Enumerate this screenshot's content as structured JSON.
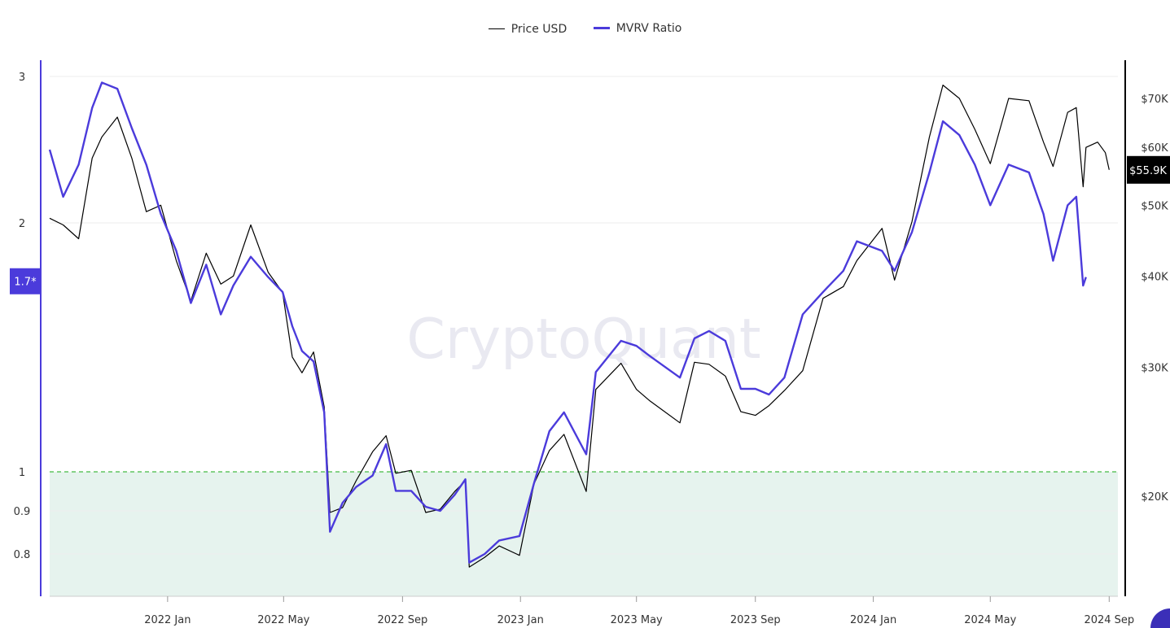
{
  "legend": {
    "price_label": "Price USD",
    "mvrv_label": "MVRV Ratio"
  },
  "watermark": "CryptoQuant",
  "colors": {
    "price": "#000000",
    "mvrv": "#4b3bdb",
    "threshold": "#44bb44",
    "zone": "#e6f3ee",
    "left_axis": "#4b3bdb"
  },
  "chart_data": {
    "type": "line",
    "x_ticks": [
      "2022 Jan",
      "2022 May",
      "2022 Sep",
      "2023 Jan",
      "2023 May",
      "2023 Sep",
      "2024 Jan",
      "2024 May",
      "2024 Sep"
    ],
    "left_axis": {
      "name": "MVRV Ratio",
      "ticks": [
        "3",
        "2",
        "1",
        "0.9",
        "0.8"
      ],
      "current_label": "1.7*",
      "current_value": 1.7
    },
    "right_axis": {
      "name": "Price USD",
      "scale": "log",
      "ticks": [
        "$70K",
        "$60K",
        "$50K",
        "$40K",
        "$30K",
        "$20K"
      ],
      "current_label": "$55.9K",
      "current_value": 55900
    },
    "threshold": {
      "value": 1,
      "style": "dashed",
      "zone": "below 1 shaded"
    },
    "series": [
      {
        "name": "MVRV Ratio",
        "axis": "left",
        "points": [
          [
            "2021-09-01",
            2.45
          ],
          [
            "2021-09-15",
            2.15
          ],
          [
            "2021-10-01",
            2.35
          ],
          [
            "2021-10-15",
            2.75
          ],
          [
            "2021-10-25",
            2.95
          ],
          [
            "2021-11-10",
            2.9
          ],
          [
            "2021-11-25",
            2.6
          ],
          [
            "2021-12-10",
            2.35
          ],
          [
            "2021-12-25",
            2.05
          ],
          [
            "2022-01-10",
            1.85
          ],
          [
            "2022-01-25",
            1.6
          ],
          [
            "2022-02-10",
            1.78
          ],
          [
            "2022-02-25",
            1.55
          ],
          [
            "2022-03-10",
            1.68
          ],
          [
            "2022-03-28",
            1.82
          ],
          [
            "2022-04-15",
            1.72
          ],
          [
            "2022-04-30",
            1.65
          ],
          [
            "2022-05-10",
            1.5
          ],
          [
            "2022-05-20",
            1.4
          ],
          [
            "2022-06-01",
            1.36
          ],
          [
            "2022-06-12",
            1.18
          ],
          [
            "2022-06-18",
            0.85
          ],
          [
            "2022-07-01",
            0.92
          ],
          [
            "2022-07-15",
            0.96
          ],
          [
            "2022-08-01",
            0.99
          ],
          [
            "2022-08-15",
            1.08
          ],
          [
            "2022-08-25",
            0.95
          ],
          [
            "2022-09-10",
            0.95
          ],
          [
            "2022-09-25",
            0.91
          ],
          [
            "2022-10-10",
            0.9
          ],
          [
            "2022-10-25",
            0.94
          ],
          [
            "2022-11-05",
            0.98
          ],
          [
            "2022-11-09",
            0.78
          ],
          [
            "2022-11-25",
            0.8
          ],
          [
            "2022-12-10",
            0.83
          ],
          [
            "2022-12-31",
            0.84
          ],
          [
            "2023-01-15",
            0.97
          ],
          [
            "2023-01-31",
            1.12
          ],
          [
            "2023-02-15",
            1.18
          ],
          [
            "2023-03-10",
            1.05
          ],
          [
            "2023-03-20",
            1.32
          ],
          [
            "2023-04-15",
            1.44
          ],
          [
            "2023-05-01",
            1.42
          ],
          [
            "2023-05-15",
            1.38
          ],
          [
            "2023-06-15",
            1.3
          ],
          [
            "2023-06-30",
            1.45
          ],
          [
            "2023-07-15",
            1.48
          ],
          [
            "2023-08-01",
            1.44
          ],
          [
            "2023-08-17",
            1.26
          ],
          [
            "2023-09-01",
            1.26
          ],
          [
            "2023-09-15",
            1.24
          ],
          [
            "2023-10-01",
            1.3
          ],
          [
            "2023-10-20",
            1.55
          ],
          [
            "2023-11-10",
            1.65
          ],
          [
            "2023-12-01",
            1.75
          ],
          [
            "2023-12-15",
            1.9
          ],
          [
            "2024-01-10",
            1.85
          ],
          [
            "2024-01-23",
            1.75
          ],
          [
            "2024-02-10",
            1.95
          ],
          [
            "2024-02-28",
            2.3
          ],
          [
            "2024-03-13",
            2.65
          ],
          [
            "2024-03-30",
            2.55
          ],
          [
            "2024-04-15",
            2.35
          ],
          [
            "2024-05-01",
            2.1
          ],
          [
            "2024-05-20",
            2.35
          ],
          [
            "2024-06-10",
            2.3
          ],
          [
            "2024-06-25",
            2.05
          ],
          [
            "2024-07-05",
            1.8
          ],
          [
            "2024-07-20",
            2.1
          ],
          [
            "2024-07-29",
            2.15
          ],
          [
            "2024-08-05",
            1.68
          ],
          [
            "2024-08-08",
            1.72
          ]
        ]
      },
      {
        "name": "Price USD",
        "axis": "right",
        "points": [
          [
            "2021-09-01",
            48000
          ],
          [
            "2021-09-15",
            47000
          ],
          [
            "2021-10-01",
            45000
          ],
          [
            "2021-10-15",
            58000
          ],
          [
            "2021-10-25",
            62000
          ],
          [
            "2021-11-10",
            66000
          ],
          [
            "2021-11-25",
            58000
          ],
          [
            "2021-12-10",
            49000
          ],
          [
            "2021-12-25",
            50000
          ],
          [
            "2022-01-10",
            42000
          ],
          [
            "2022-01-25",
            37000
          ],
          [
            "2022-02-10",
            43000
          ],
          [
            "2022-02-25",
            39000
          ],
          [
            "2022-03-10",
            40000
          ],
          [
            "2022-03-28",
            47000
          ],
          [
            "2022-04-15",
            40500
          ],
          [
            "2022-04-30",
            38000
          ],
          [
            "2022-05-10",
            31000
          ],
          [
            "2022-05-20",
            29500
          ],
          [
            "2022-06-01",
            31500
          ],
          [
            "2022-06-12",
            26500
          ],
          [
            "2022-06-18",
            19000
          ],
          [
            "2022-07-01",
            19300
          ],
          [
            "2022-07-15",
            21000
          ],
          [
            "2022-08-01",
            23000
          ],
          [
            "2022-08-15",
            24200
          ],
          [
            "2022-08-25",
            21500
          ],
          [
            "2022-09-10",
            21700
          ],
          [
            "2022-09-25",
            19000
          ],
          [
            "2022-10-10",
            19200
          ],
          [
            "2022-10-25",
            20300
          ],
          [
            "2022-11-05",
            21000
          ],
          [
            "2022-11-09",
            16000
          ],
          [
            "2022-11-25",
            16500
          ],
          [
            "2022-12-10",
            17100
          ],
          [
            "2022-12-31",
            16600
          ],
          [
            "2023-01-15",
            20800
          ],
          [
            "2023-01-31",
            23100
          ],
          [
            "2023-02-15",
            24300
          ],
          [
            "2023-03-10",
            20300
          ],
          [
            "2023-03-20",
            28000
          ],
          [
            "2023-04-15",
            30400
          ],
          [
            "2023-05-01",
            28000
          ],
          [
            "2023-05-15",
            27000
          ],
          [
            "2023-06-15",
            25200
          ],
          [
            "2023-06-30",
            30500
          ],
          [
            "2023-07-15",
            30300
          ],
          [
            "2023-08-01",
            29200
          ],
          [
            "2023-08-17",
            26100
          ],
          [
            "2023-09-01",
            25800
          ],
          [
            "2023-09-15",
            26600
          ],
          [
            "2023-10-01",
            27900
          ],
          [
            "2023-10-20",
            29700
          ],
          [
            "2023-11-10",
            37300
          ],
          [
            "2023-12-01",
            38700
          ],
          [
            "2023-12-15",
            42000
          ],
          [
            "2024-01-10",
            46500
          ],
          [
            "2024-01-23",
            39500
          ],
          [
            "2024-02-10",
            47500
          ],
          [
            "2024-02-28",
            62000
          ],
          [
            "2024-03-13",
            73000
          ],
          [
            "2024-03-30",
            70000
          ],
          [
            "2024-04-15",
            63500
          ],
          [
            "2024-05-01",
            57000
          ],
          [
            "2024-05-20",
            70000
          ],
          [
            "2024-06-10",
            69500
          ],
          [
            "2024-06-25",
            61000
          ],
          [
            "2024-07-05",
            56500
          ],
          [
            "2024-07-20",
            67000
          ],
          [
            "2024-07-29",
            68000
          ],
          [
            "2024-08-05",
            53000
          ],
          [
            "2024-08-08",
            60000
          ],
          [
            "2024-08-20",
            61000
          ],
          [
            "2024-08-28",
            59000
          ],
          [
            "2024-09-01",
            55900
          ]
        ]
      }
    ]
  }
}
